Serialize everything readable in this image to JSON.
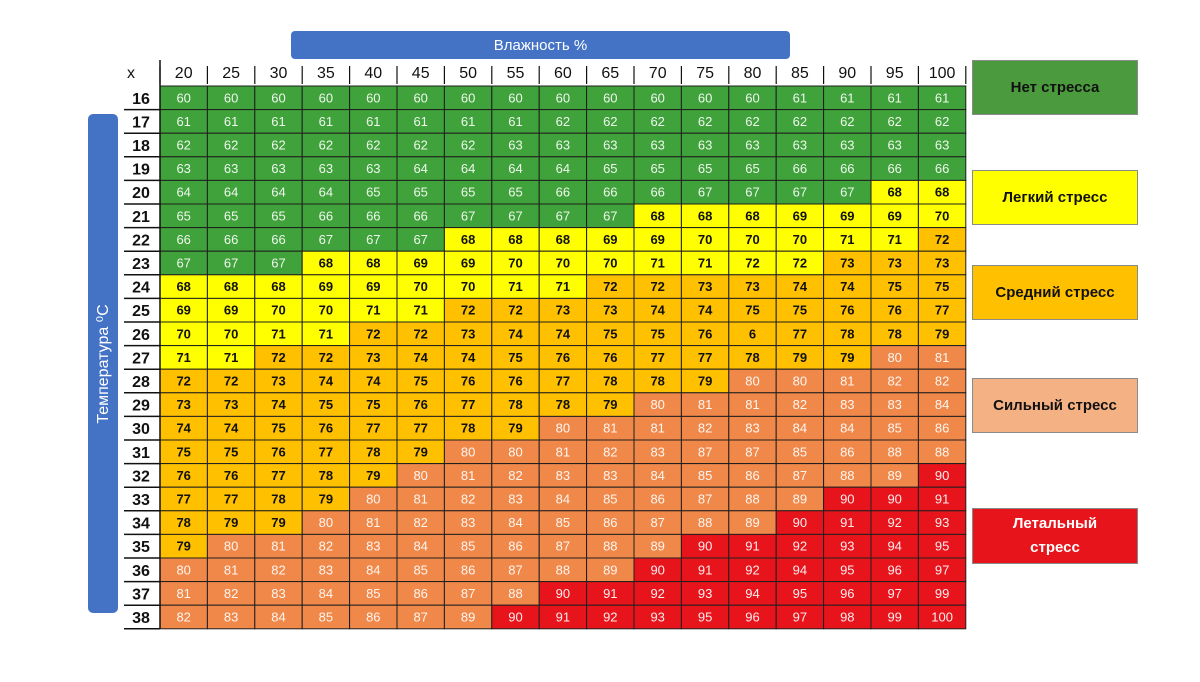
{
  "chart_data": {
    "type": "heatmap",
    "title": "Влажность %",
    "xlabel": "Влажность %",
    "ylabel": "Температура ⁰C",
    "corner_label": "x",
    "x": [
      20,
      25,
      30,
      35,
      40,
      45,
      50,
      55,
      60,
      65,
      70,
      75,
      80,
      85,
      90,
      95,
      100
    ],
    "y": [
      16,
      17,
      18,
      19,
      20,
      21,
      22,
      23,
      24,
      25,
      26,
      27,
      28,
      29,
      30,
      31,
      32,
      33,
      34,
      35,
      36,
      37,
      38
    ],
    "values": [
      [
        60,
        60,
        60,
        60,
        60,
        60,
        60,
        60,
        60,
        60,
        60,
        60,
        60,
        61,
        61,
        61,
        61
      ],
      [
        61,
        61,
        61,
        61,
        61,
        61,
        61,
        61,
        62,
        62,
        62,
        62,
        62,
        62,
        62,
        62,
        62
      ],
      [
        62,
        62,
        62,
        62,
        62,
        62,
        62,
        63,
        63,
        63,
        63,
        63,
        63,
        63,
        63,
        63,
        63
      ],
      [
        63,
        63,
        63,
        63,
        63,
        64,
        64,
        64,
        64,
        65,
        65,
        65,
        65,
        66,
        66,
        66,
        66
      ],
      [
        64,
        64,
        64,
        64,
        65,
        65,
        65,
        65,
        66,
        66,
        66,
        67,
        67,
        67,
        67,
        68,
        68
      ],
      [
        65,
        65,
        65,
        66,
        66,
        66,
        67,
        67,
        67,
        67,
        68,
        68,
        68,
        69,
        69,
        69,
        70
      ],
      [
        66,
        66,
        66,
        67,
        67,
        67,
        68,
        68,
        68,
        69,
        69,
        70,
        70,
        70,
        71,
        71,
        72
      ],
      [
        67,
        67,
        67,
        68,
        68,
        69,
        69,
        70,
        70,
        70,
        71,
        71,
        72,
        72,
        73,
        73,
        73
      ],
      [
        68,
        68,
        68,
        69,
        69,
        70,
        70,
        71,
        71,
        72,
        72,
        73,
        73,
        74,
        74,
        75,
        75
      ],
      [
        69,
        69,
        70,
        70,
        71,
        71,
        72,
        72,
        73,
        73,
        74,
        74,
        75,
        75,
        76,
        76,
        77
      ],
      [
        70,
        70,
        71,
        71,
        72,
        72,
        73,
        74,
        74,
        75,
        75,
        76,
        6,
        77,
        78,
        78,
        79
      ],
      [
        71,
        71,
        72,
        72,
        73,
        74,
        74,
        75,
        76,
        76,
        77,
        77,
        78,
        79,
        79,
        80,
        81
      ],
      [
        72,
        72,
        73,
        74,
        74,
        75,
        76,
        76,
        77,
        78,
        78,
        79,
        80,
        80,
        81,
        82,
        82
      ],
      [
        73,
        73,
        74,
        75,
        75,
        76,
        77,
        78,
        78,
        79,
        80,
        81,
        81,
        82,
        83,
        83,
        84
      ],
      [
        74,
        74,
        75,
        76,
        77,
        77,
        78,
        79,
        80,
        81,
        81,
        82,
        83,
        84,
        84,
        85,
        86
      ],
      [
        75,
        75,
        76,
        77,
        78,
        79,
        80,
        80,
        81,
        82,
        83,
        87,
        87,
        85,
        86,
        88,
        88
      ],
      [
        76,
        76,
        77,
        78,
        79,
        80,
        81,
        82,
        83,
        83,
        84,
        85,
        86,
        87,
        88,
        89,
        90
      ],
      [
        77,
        77,
        78,
        79,
        80,
        81,
        82,
        83,
        84,
        85,
        86,
        87,
        88,
        89,
        90,
        90,
        91
      ],
      [
        78,
        79,
        79,
        80,
        81,
        82,
        83,
        84,
        85,
        86,
        87,
        88,
        89,
        90,
        91,
        92,
        93
      ],
      [
        79,
        80,
        81,
        82,
        83,
        84,
        85,
        86,
        87,
        88,
        89,
        90,
        91,
        92,
        93,
        94,
        95
      ],
      [
        80,
        81,
        82,
        83,
        84,
        85,
        86,
        87,
        88,
        89,
        90,
        91,
        92,
        94,
        95,
        96,
        97
      ],
      [
        81,
        82,
        83,
        84,
        85,
        86,
        87,
        88,
        90,
        91,
        92,
        93,
        94,
        95,
        96,
        97,
        99
      ],
      [
        82,
        83,
        84,
        85,
        86,
        87,
        89,
        90,
        91,
        92,
        93,
        95,
        96,
        97,
        98,
        99,
        100
      ]
    ],
    "zones": [
      {
        "name": "none",
        "color": "#3fa23a"
      },
      {
        "name": "light",
        "color": "#ffff00"
      },
      {
        "name": "medium",
        "color": "#ffc000"
      },
      {
        "name": "strong",
        "color": "#f0884a"
      },
      {
        "name": "lethal",
        "color": "#e8141c"
      }
    ],
    "zone_map": [
      [
        0,
        0,
        0,
        0,
        0,
        0,
        0,
        0,
        0,
        0,
        0,
        0,
        0,
        0,
        0,
        0,
        0
      ],
      [
        0,
        0,
        0,
        0,
        0,
        0,
        0,
        0,
        0,
        0,
        0,
        0,
        0,
        0,
        0,
        0,
        0
      ],
      [
        0,
        0,
        0,
        0,
        0,
        0,
        0,
        0,
        0,
        0,
        0,
        0,
        0,
        0,
        0,
        0,
        0
      ],
      [
        0,
        0,
        0,
        0,
        0,
        0,
        0,
        0,
        0,
        0,
        0,
        0,
        0,
        0,
        0,
        0,
        0
      ],
      [
        0,
        0,
        0,
        0,
        0,
        0,
        0,
        0,
        0,
        0,
        0,
        0,
        0,
        0,
        0,
        1,
        1
      ],
      [
        0,
        0,
        0,
        0,
        0,
        0,
        0,
        0,
        0,
        0,
        1,
        1,
        1,
        1,
        1,
        1,
        1
      ],
      [
        0,
        0,
        0,
        0,
        0,
        0,
        1,
        1,
        1,
        1,
        1,
        1,
        1,
        1,
        1,
        1,
        2
      ],
      [
        0,
        0,
        0,
        1,
        1,
        1,
        1,
        1,
        1,
        1,
        1,
        1,
        1,
        1,
        2,
        2,
        2
      ],
      [
        1,
        1,
        1,
        1,
        1,
        1,
        1,
        1,
        1,
        2,
        2,
        2,
        2,
        2,
        2,
        2,
        2
      ],
      [
        1,
        1,
        1,
        1,
        1,
        1,
        2,
        2,
        2,
        2,
        2,
        2,
        2,
        2,
        2,
        2,
        2
      ],
      [
        1,
        1,
        1,
        1,
        2,
        2,
        2,
        2,
        2,
        2,
        2,
        2,
        2,
        2,
        2,
        2,
        2
      ],
      [
        1,
        1,
        2,
        2,
        2,
        2,
        2,
        2,
        2,
        2,
        2,
        2,
        2,
        2,
        2,
        3,
        3
      ],
      [
        2,
        2,
        2,
        2,
        2,
        2,
        2,
        2,
        2,
        2,
        2,
        2,
        3,
        3,
        3,
        3,
        3
      ],
      [
        2,
        2,
        2,
        2,
        2,
        2,
        2,
        2,
        2,
        2,
        3,
        3,
        3,
        3,
        3,
        3,
        3
      ],
      [
        2,
        2,
        2,
        2,
        2,
        2,
        2,
        2,
        3,
        3,
        3,
        3,
        3,
        3,
        3,
        3,
        3
      ],
      [
        2,
        2,
        2,
        2,
        2,
        2,
        3,
        3,
        3,
        3,
        3,
        3,
        3,
        3,
        3,
        3,
        3
      ],
      [
        2,
        2,
        2,
        2,
        2,
        3,
        3,
        3,
        3,
        3,
        3,
        3,
        3,
        3,
        3,
        3,
        4
      ],
      [
        2,
        2,
        2,
        2,
        3,
        3,
        3,
        3,
        3,
        3,
        3,
        3,
        3,
        3,
        4,
        4,
        4
      ],
      [
        2,
        2,
        2,
        3,
        3,
        3,
        3,
        3,
        3,
        3,
        3,
        3,
        3,
        4,
        4,
        4,
        4
      ],
      [
        2,
        3,
        3,
        3,
        3,
        3,
        3,
        3,
        3,
        3,
        3,
        4,
        4,
        4,
        4,
        4,
        4
      ],
      [
        3,
        3,
        3,
        3,
        3,
        3,
        3,
        3,
        3,
        3,
        4,
        4,
        4,
        4,
        4,
        4,
        4
      ],
      [
        3,
        3,
        3,
        3,
        3,
        3,
        3,
        3,
        4,
        4,
        4,
        4,
        4,
        4,
        4,
        4,
        4
      ],
      [
        3,
        3,
        3,
        3,
        3,
        3,
        3,
        4,
        4,
        4,
        4,
        4,
        4,
        4,
        4,
        4,
        4
      ]
    ]
  },
  "header": {
    "humidity_label": "Влажность %"
  },
  "axis": {
    "temperature_label": "Температура ⁰C"
  },
  "legend": [
    {
      "label": "Нет стресса",
      "bg": "#4c9a3e",
      "fg": "#111111"
    },
    {
      "label": "Легкий стресс",
      "bg": "#ffff00",
      "fg": "#111111"
    },
    {
      "label": "Средний стресс",
      "bg": "#ffc000",
      "fg": "#111111"
    },
    {
      "label": "Сильный стресс",
      "bg": "#f4b183",
      "fg": "#111111"
    },
    {
      "label": "Летальный стресс",
      "bg": "#e8141c",
      "fg": "#ffffff"
    }
  ]
}
